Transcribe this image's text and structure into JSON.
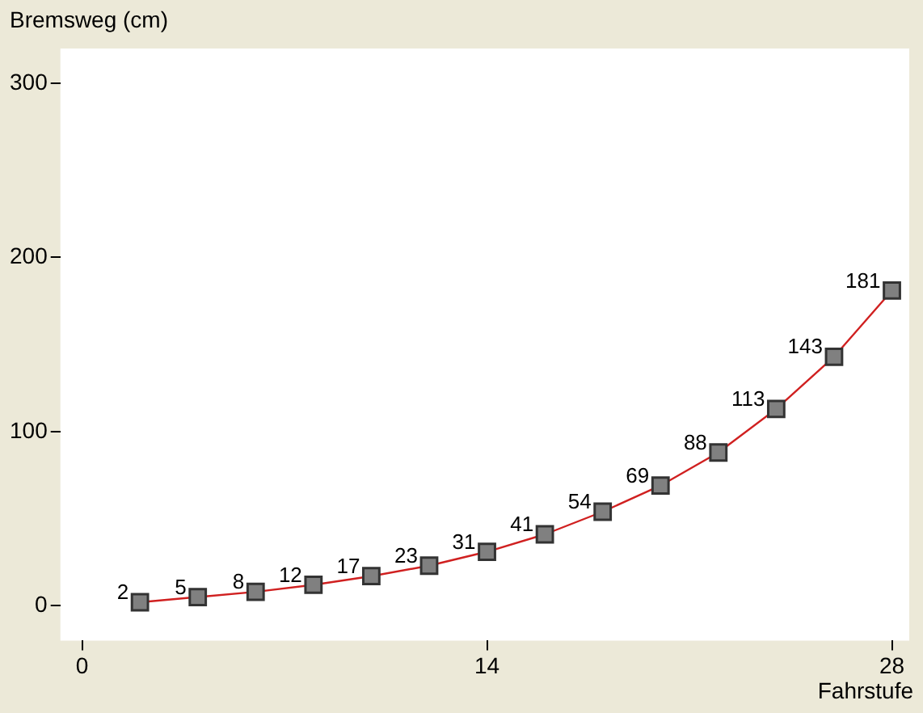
{
  "chart_data": {
    "type": "line",
    "xlabel": "Fahrstufe",
    "ylabel": "Bremsweg (cm)",
    "x": [
      2,
      4,
      6,
      8,
      10,
      12,
      14,
      16,
      18,
      20,
      22,
      24,
      26,
      28
    ],
    "series": [
      {
        "color": "#d02020",
        "values": [
          2,
          5,
          8,
          12,
          17,
          23,
          31,
          41,
          54,
          69,
          88,
          113,
          143,
          181
        ]
      }
    ],
    "xlim": [
      -0.75,
      28.6
    ],
    "xticks": [
      0,
      14,
      28
    ],
    "ylim": [
      -20,
      320
    ],
    "yticks": [
      0,
      100,
      200,
      300
    ],
    "grid": false,
    "legend": false,
    "marker": "square",
    "line_style": "solid",
    "data_labels": true
  }
}
